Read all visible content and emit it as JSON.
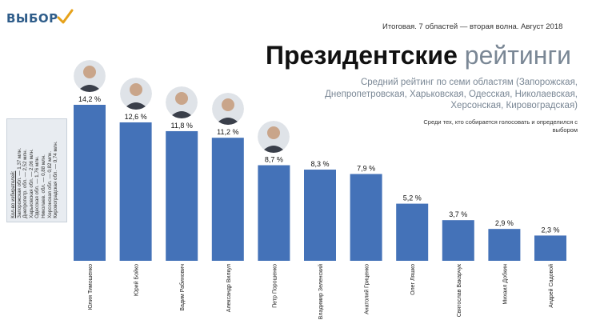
{
  "header": {
    "logo": "ВЫБОР",
    "wave": "Итоговая. 7 областей — вторая волна. Август 2018",
    "title_bold": "Президентские",
    "title_light": "рейтинги",
    "subtitle": "Средний рейтинг по семи областям (Запорожская, Днепропетровская, Харьковская, Одесская, Николаевская, Херсонская, Кировоградская)",
    "note": "Среди тех, кто собирается голосовать и определился с выбором"
  },
  "voters": {
    "title": "Кол-во избирателей:",
    "lines": [
      "Запорожская обл. — 1,37 млн.",
      "Днепропетр. обл. — 2,52 млн.",
      "Харьковская обл. — 2,06 млн.",
      "Одесская обл. — 1,76 млн.",
      "Николаев. обл. — 0,88 млн.",
      "Херсонская обл. — 0,82 млн.",
      "Кировоградская обл. — 0,74 млн."
    ]
  },
  "colors": {
    "bar": "#4472b8",
    "brand": "#2f5d8a",
    "accent": "#e6a21a"
  },
  "chart_data": {
    "type": "bar",
    "categories": [
      "Юлия Тимошенко",
      "Юрий Бойко",
      "Вадим Рабинович",
      "Александр Вилкул",
      "Петр Порошенко",
      "Владимир Зеленский",
      "Анатолий Гриценко",
      "Олег Ляшко",
      "Святослав Вакарчук",
      "Михаил Добкин",
      "Андрей Садовой"
    ],
    "values": [
      14.2,
      12.6,
      11.8,
      11.2,
      8.7,
      8.3,
      7.9,
      5.2,
      3.7,
      2.9,
      2.3
    ],
    "value_labels": [
      "14,2 %",
      "12,6 %",
      "11,8 %",
      "11,2 %",
      "8,7 %",
      "8,3 %",
      "7,9 %",
      "5,2 %",
      "3,7 %",
      "2,9 %",
      "2,3 %"
    ],
    "ylim": [
      0,
      14.2
    ],
    "grid": false,
    "portraits": [
      true,
      true,
      true,
      true,
      true,
      false,
      false,
      false,
      false,
      false,
      false
    ]
  }
}
